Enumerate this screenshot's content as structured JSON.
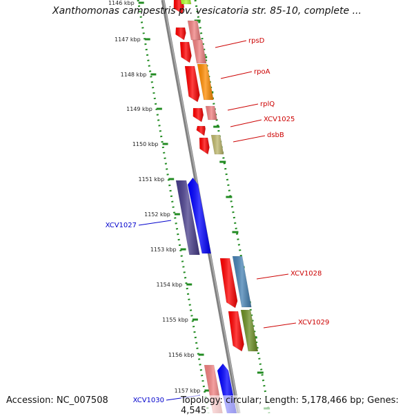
{
  "title": "Xanthomonas campestris pv. vesicatoria str. 85-10, complete ...",
  "accession": "Accession: NC_007508",
  "summary": "Topology: circular; Length: 5,178,466 bp; Genes: 4,545",
  "colors": {
    "backbone": "#808080",
    "ticks": "#228b22",
    "red_gene": "#ff0000",
    "pink_gene": "#f08080",
    "orange_gene": "#ff8c00",
    "khaki_gene": "#bdb76b",
    "steel_gene": "#4682b4",
    "olive_gene": "#6b8e23",
    "blue_gene": "#0000ff",
    "navy_gene": "#483d8b",
    "lime_gene": "#adff2f",
    "red_label": "#cc0000",
    "blue_label": "#0000cc"
  },
  "tick_labels": [
    "1146 kbp",
    "1147 kbp",
    "1148 kbp",
    "1149 kbp",
    "1150 kbp",
    "1151 kbp",
    "1152 kbp",
    "1153 kbp",
    "1154 kbp",
    "1155 kbp",
    "1156 kbp",
    "1157 kbp"
  ],
  "gene_labels": [
    {
      "text": "rpsD",
      "color": "red"
    },
    {
      "text": "rpoA",
      "color": "red"
    },
    {
      "text": "rplQ",
      "color": "red"
    },
    {
      "text": "XCV1025",
      "color": "red"
    },
    {
      "text": "dsbB",
      "color": "red"
    },
    {
      "text": "XCV1027",
      "color": "blue"
    },
    {
      "text": "XCV1028",
      "color": "red"
    },
    {
      "text": "XCV1029",
      "color": "red"
    },
    {
      "text": "XCV1030",
      "color": "blue"
    }
  ]
}
